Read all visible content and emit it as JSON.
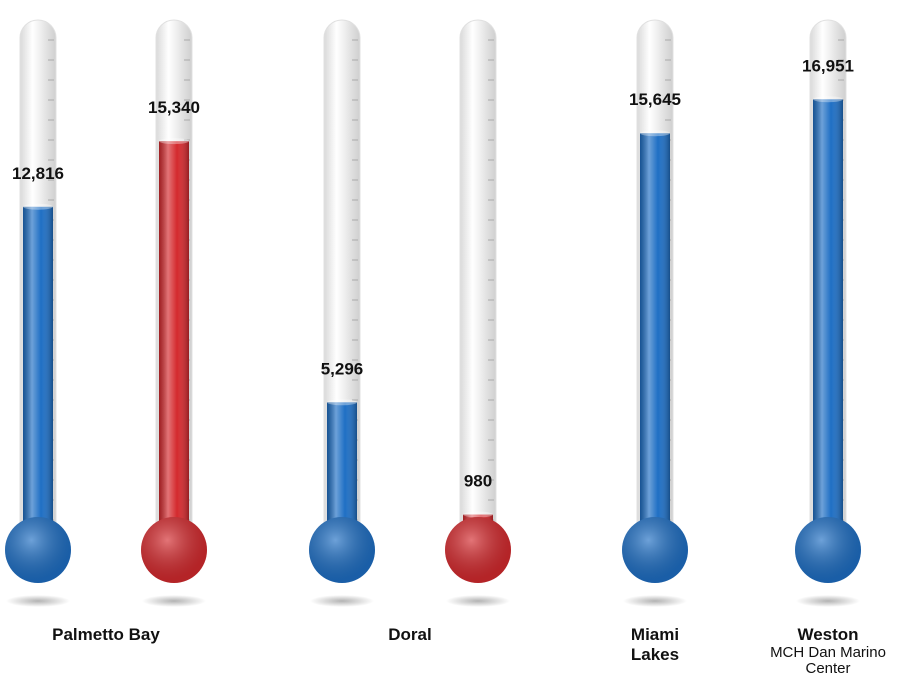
{
  "chart_data": {
    "type": "thermometer",
    "categories": [
      "Palmetto Bay",
      "Doral",
      "Miami Lakes",
      "Weston"
    ],
    "annotation": "MCH Dan Marino Center",
    "series": [
      {
        "color": "#1f6fc4",
        "values": [
          12816,
          5296,
          15645,
          16951
        ],
        "value_labels": [
          "12,816",
          "5,296",
          "15,645",
          "16,951"
        ]
      },
      {
        "color": "#d42a2e",
        "values": [
          15340,
          980,
          null,
          null
        ],
        "value_labels": [
          "15,340",
          "980",
          null,
          null
        ]
      }
    ],
    "ylim": [
      0,
      20000
    ]
  }
}
